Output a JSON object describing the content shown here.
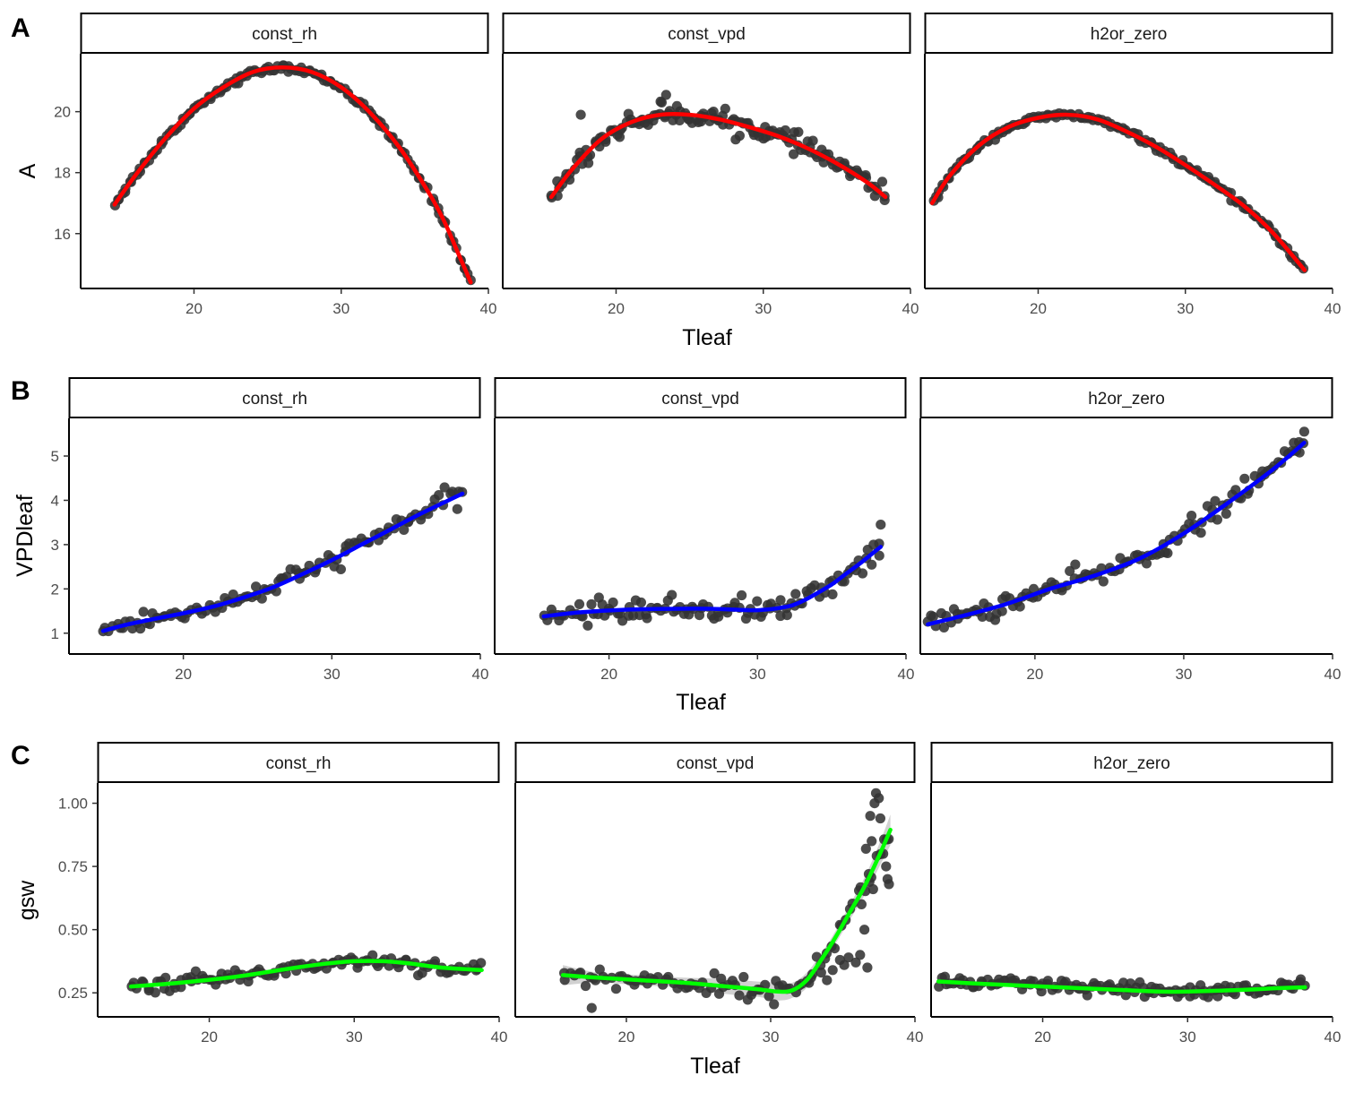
{
  "chart_data": [
    {
      "type": "scatter",
      "panel_label": "A",
      "xlabel": "Tleaf",
      "ylabel": "A",
      "xlim": [
        12.3,
        40
      ],
      "x_ticks": [
        20,
        30,
        40
      ],
      "y_ticks": [
        16,
        18,
        20
      ],
      "point_color": "#333333",
      "smooth_color": "#ff0000",
      "grid": false,
      "facets": [
        {
          "name": "const_rh",
          "xlim": [
            12.3,
            40
          ],
          "ylim": [
            14.2,
            21.9
          ],
          "x_range": [
            14.6,
            38.8
          ],
          "n_points": 150,
          "noise": 0.05,
          "curve": {
            "x": [
              14.6,
              16,
              18,
              20,
              22,
              24,
              26,
              28,
              30,
              32,
              34,
              36,
              37,
              38,
              38.8
            ],
            "y": [
              16.95,
              17.9,
              19.1,
              20.1,
              20.8,
              21.3,
              21.45,
              21.3,
              20.8,
              19.95,
              18.8,
              17.3,
              16.4,
              15.3,
              14.4
            ]
          }
        },
        {
          "name": "const_vpd",
          "xlim": [
            12.3,
            40
          ],
          "ylim": [
            14.2,
            21.9
          ],
          "x_range": [
            15.6,
            38.3
          ],
          "n_points": 150,
          "noise": 0.15,
          "curve": {
            "x": [
              15.6,
              17,
              19,
              21,
              23,
              25,
              27,
              29,
              31,
              33,
              35,
              37,
              38.3
            ],
            "y": [
              17.2,
              18.1,
              19.1,
              19.65,
              19.9,
              19.9,
              19.75,
              19.5,
              19.2,
              18.8,
              18.3,
              17.7,
              17.2
            ]
          },
          "outliers": [
            {
              "x": 17.6,
              "y": 19.9
            },
            {
              "x": 23.4,
              "y": 20.55
            },
            {
              "x": 23.1,
              "y": 20.3
            }
          ]
        },
        {
          "name": "h2or_zero",
          "xlim": [
            12.3,
            40
          ],
          "ylim": [
            14.2,
            21.9
          ],
          "x_range": [
            12.8,
            38.1
          ],
          "n_points": 150,
          "noise": 0.05,
          "curve": {
            "x": [
              12.8,
              14,
              16,
              18,
              20,
              22,
              24,
              26,
              28,
              30,
              32,
              34,
              36,
              38.1
            ],
            "y": [
              17.0,
              17.9,
              18.9,
              19.5,
              19.8,
              19.9,
              19.75,
              19.35,
              18.85,
              18.25,
              17.6,
              16.9,
              16.0,
              14.8
            ]
          }
        }
      ]
    },
    {
      "type": "scatter",
      "panel_label": "B",
      "xlabel": "Tleaf",
      "ylabel": "VPDleaf",
      "xlim": [
        12.3,
        40
      ],
      "x_ticks": [
        20,
        30,
        40
      ],
      "y_ticks": [
        1,
        2,
        3,
        4,
        5
      ],
      "point_color": "#333333",
      "smooth_color": "#0000ff",
      "grid": false,
      "facets": [
        {
          "name": "const_rh",
          "xlim": [
            12.3,
            40
          ],
          "ylim": [
            0.53,
            5.85
          ],
          "x_range": [
            14.6,
            38.8
          ],
          "n_points": 110,
          "noise": 0.11,
          "curve": {
            "x": [
              14.6,
              16,
              18,
              20,
              22,
              24,
              26,
              28,
              30,
              32,
              34,
              36,
              38.8
            ],
            "y": [
              1.05,
              1.18,
              1.32,
              1.45,
              1.6,
              1.8,
              2.03,
              2.33,
              2.65,
              3.0,
              3.35,
              3.7,
              4.15
            ]
          }
        },
        {
          "name": "const_vpd",
          "xlim": [
            12.3,
            40
          ],
          "ylim": [
            0.53,
            5.85
          ],
          "x_range": [
            15.6,
            38.3
          ],
          "n_points": 110,
          "noise": 0.13,
          "curve": {
            "x": [
              15.6,
              18,
              21,
              24,
              27,
              30,
              32,
              33,
              34,
              35,
              36,
              37,
              38.3
            ],
            "y": [
              1.38,
              1.47,
              1.53,
              1.55,
              1.55,
              1.52,
              1.6,
              1.72,
              1.9,
              2.1,
              2.35,
              2.6,
              2.95
            ]
          },
          "outliers": [
            {
              "x": 38.3,
              "y": 3.45
            }
          ]
        },
        {
          "name": "h2or_zero",
          "xlim": [
            12.3,
            40
          ],
          "ylim": [
            0.53,
            5.85
          ],
          "x_range": [
            12.8,
            38.1
          ],
          "n_points": 120,
          "noise": 0.12,
          "curve": {
            "x": [
              12.8,
              15,
              18,
              21,
              24,
              27,
              30,
              33,
              36,
              38.1
            ],
            "y": [
              1.2,
              1.38,
              1.65,
              2.0,
              2.3,
              2.68,
              3.25,
              3.95,
              4.7,
              5.3
            ]
          },
          "outliers": [
            {
              "x": 38.1,
              "y": 5.55
            },
            {
              "x": 37.4,
              "y": 5.3
            }
          ]
        }
      ]
    },
    {
      "type": "scatter",
      "panel_label": "C",
      "xlabel": "Tleaf",
      "ylabel": "gsw",
      "xlim": [
        12.3,
        40
      ],
      "x_ticks": [
        20,
        30,
        40
      ],
      "y_ticks": [
        0.25,
        0.5,
        0.75,
        1.0
      ],
      "y_tick_labels": [
        "0.25",
        "0.50",
        "0.75",
        "1.00"
      ],
      "point_color": "#333333",
      "smooth_color": "#00ff00",
      "ribbon_color": "#bdbdbd",
      "grid": false,
      "facets": [
        {
          "name": "const_rh",
          "xlim": [
            12.3,
            40
          ],
          "ylim": [
            0.155,
            1.08
          ],
          "x_range": [
            14.6,
            38.8
          ],
          "n_points": 110,
          "noise": 0.015,
          "curve": {
            "x": [
              14.6,
              18,
              22,
              26,
              28,
              30,
              32,
              34,
              36,
              38.8
            ],
            "y": [
              0.275,
              0.29,
              0.315,
              0.35,
              0.365,
              0.375,
              0.375,
              0.365,
              0.35,
              0.34
            ]
          }
        },
        {
          "name": "const_vpd",
          "xlim": [
            12.3,
            40
          ],
          "ylim": [
            0.155,
            1.08
          ],
          "x_range": [
            15.6,
            38.3
          ],
          "n_points": 90,
          "noise": 0.02,
          "curve": {
            "x": [
              15.6,
              18,
              21,
              24,
              27,
              29,
              30.5,
              31.5,
              32.5,
              33.5,
              34.5,
              35.5,
              36.5,
              37.5,
              38.3
            ],
            "y": [
              0.32,
              0.31,
              0.3,
              0.29,
              0.275,
              0.265,
              0.255,
              0.26,
              0.3,
              0.38,
              0.47,
              0.57,
              0.67,
              0.79,
              0.895
            ]
          },
          "ribbon_halfwidth": [
            0.04,
            0.02,
            0.02,
            0.02,
            0.03,
            0.03,
            0.035,
            0.03,
            0.03,
            0.025,
            0.025,
            0.03,
            0.035,
            0.045,
            0.06
          ],
          "outliers": [
            {
              "x": 17.6,
              "y": 0.19
            },
            {
              "x": 37.3,
              "y": 1.04
            },
            {
              "x": 37.5,
              "y": 1.02
            },
            {
              "x": 37.2,
              "y": 1.0
            },
            {
              "x": 36.9,
              "y": 0.95
            },
            {
              "x": 37.6,
              "y": 0.94
            },
            {
              "x": 36.6,
              "y": 0.82
            },
            {
              "x": 37.0,
              "y": 0.85
            },
            {
              "x": 37.8,
              "y": 0.8
            },
            {
              "x": 38.0,
              "y": 0.75
            },
            {
              "x": 36.8,
              "y": 0.72
            },
            {
              "x": 38.1,
              "y": 0.7
            },
            {
              "x": 38.2,
              "y": 0.68
            },
            {
              "x": 36.3,
              "y": 0.6
            },
            {
              "x": 36.5,
              "y": 0.5
            },
            {
              "x": 37.1,
              "y": 0.66
            },
            {
              "x": 36.2,
              "y": 0.4
            },
            {
              "x": 35.4,
              "y": 0.39
            },
            {
              "x": 36.7,
              "y": 0.35
            },
            {
              "x": 35.9,
              "y": 0.37
            },
            {
              "x": 34.8,
              "y": 0.38
            },
            {
              "x": 33.5,
              "y": 0.33
            },
            {
              "x": 32.8,
              "y": 0.31
            },
            {
              "x": 34.3,
              "y": 0.34
            },
            {
              "x": 35.1,
              "y": 0.36
            },
            {
              "x": 33.9,
              "y": 0.3
            }
          ]
        },
        {
          "name": "h2or_zero",
          "xlim": [
            12.3,
            40
          ],
          "ylim": [
            0.155,
            1.08
          ],
          "x_range": [
            12.8,
            38.1
          ],
          "n_points": 130,
          "noise": 0.015,
          "curve": {
            "x": [
              12.8,
              16,
              20,
              24,
              28,
              30,
              32,
              34,
              36,
              38.1
            ],
            "y": [
              0.295,
              0.285,
              0.275,
              0.265,
              0.255,
              0.255,
              0.258,
              0.262,
              0.268,
              0.272
            ]
          }
        }
      ]
    }
  ]
}
